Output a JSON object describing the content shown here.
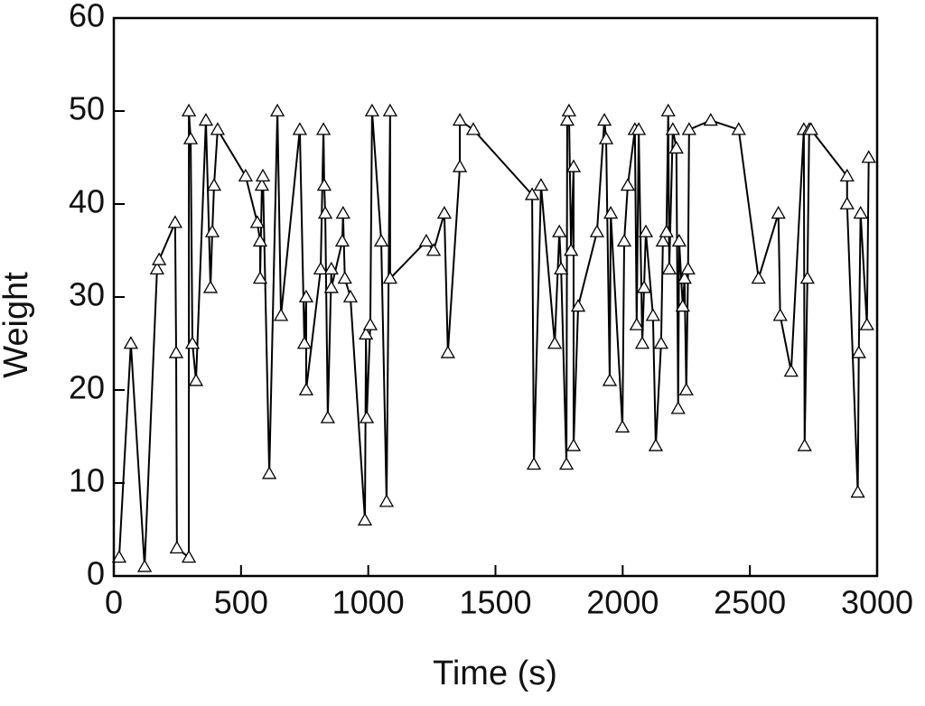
{
  "chart_data": {
    "type": "line",
    "marker": "triangle",
    "x_label": "Time (s)",
    "y_label": "Weight",
    "xlim": [
      0,
      3000
    ],
    "xticks": [
      0,
      500,
      1000,
      1500,
      2000,
      2500,
      3000
    ],
    "ylim": [
      0,
      60
    ],
    "yticks": [
      0,
      10,
      20,
      30,
      40,
      50,
      60
    ],
    "series": [
      {
        "color": "#000000",
        "x": [
          21,
          67,
          121,
          170,
          178,
          241,
          245,
          248,
          295,
          295,
          302,
          309,
          323,
          362,
          380,
          387,
          394,
          408,
          518,
          564,
          575,
          575,
          582,
          586,
          611,
          643,
          657,
          731,
          749,
          756,
          756,
          813,
          824,
          827,
          831,
          841,
          855,
          855,
          898,
          901,
          908,
          930,
          987,
          991,
          994,
          1008,
          1015,
          1051,
          1072,
          1086,
          1086,
          1228,
          1257,
          1299,
          1313,
          1360,
          1360,
          1413,
          1644,
          1651,
          1679,
          1733,
          1751,
          1758,
          1779,
          1782,
          1789,
          1797,
          1807,
          1807,
          1825,
          1899,
          1928,
          1935,
          1949,
          1953,
          1999,
          2006,
          2020,
          2048,
          2055,
          2063,
          2077,
          2084,
          2091,
          2119,
          2130,
          2151,
          2158,
          2172,
          2179,
          2183,
          2197,
          2211,
          2218,
          2222,
          2236,
          2243,
          2250,
          2257,
          2261,
          2346,
          2456,
          2534,
          2612,
          2619,
          2662,
          2712,
          2715,
          2726,
          2733,
          2740,
          2882,
          2882,
          2924,
          2928,
          2935,
          2960,
          2967
        ],
        "values": [
          2,
          25,
          1,
          33,
          34,
          38,
          24,
          3,
          2,
          50,
          47,
          25,
          21,
          49,
          31,
          37,
          42,
          48,
          43,
          38,
          36,
          32,
          42,
          43,
          11,
          50,
          28,
          48,
          25,
          30,
          20,
          33,
          48,
          42,
          39,
          17,
          33,
          31,
          36,
          39,
          32,
          30,
          6,
          26,
          17,
          27,
          50,
          36,
          8,
          50,
          32,
          36,
          35,
          39,
          24,
          44,
          49,
          48,
          41,
          12,
          42,
          25,
          37,
          33,
          12,
          49,
          50,
          35,
          44,
          14,
          29,
          37,
          49,
          47,
          21,
          39,
          16,
          36,
          42,
          48,
          27,
          48,
          25,
          31,
          37,
          28,
          14,
          25,
          36,
          37,
          50,
          33,
          48,
          46,
          18,
          36,
          29,
          32,
          20,
          33,
          48,
          49,
          48,
          32,
          39,
          28,
          22,
          48,
          14,
          32,
          48,
          48,
          43,
          40,
          9,
          24,
          39,
          27,
          45
        ]
      }
    ]
  }
}
